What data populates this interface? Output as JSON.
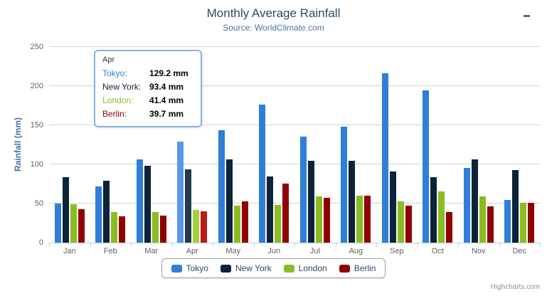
{
  "header": {
    "title": "Monthly Average Rainfall",
    "subtitle": "Source: WorldClimate.com"
  },
  "chart_data": {
    "type": "bar",
    "title": "Monthly Average Rainfall",
    "subtitle": "Source: WorldClimate.com",
    "categories": [
      "Jan",
      "Feb",
      "Mar",
      "Apr",
      "May",
      "Jun",
      "Jul",
      "Aug",
      "Sep",
      "Oct",
      "Nov",
      "Dec"
    ],
    "series": [
      {
        "name": "Tokyo",
        "color": "#2f7ed8",
        "hover_color": "#5997e8",
        "values": [
          49.9,
          71.5,
          106.4,
          129.2,
          144.0,
          176.0,
          135.6,
          148.5,
          216.4,
          194.1,
          95.6,
          54.4
        ]
      },
      {
        "name": "New York",
        "color": "#0d233a",
        "hover_color": "#22394f",
        "values": [
          83.6,
          78.8,
          98.5,
          93.4,
          106.0,
          84.5,
          105.0,
          104.3,
          91.2,
          83.5,
          106.6,
          92.3
        ]
      },
      {
        "name": "London",
        "color": "#8bbc21",
        "hover_color": "#a3cf3d",
        "values": [
          48.9,
          38.8,
          39.3,
          41.4,
          47.0,
          48.3,
          59.0,
          59.6,
          52.4,
          65.2,
          59.3,
          51.2
        ]
      },
      {
        "name": "Berlin",
        "color": "#910000",
        "hover_color": "#c01818",
        "values": [
          42.4,
          33.2,
          34.5,
          39.7,
          52.6,
          75.5,
          57.4,
          60.4,
          47.6,
          39.1,
          46.8,
          51.1
        ]
      }
    ],
    "xlabel": "",
    "ylabel": "Rainfall (mm)",
    "ylim": [
      0,
      250
    ],
    "yticks": [
      0,
      50,
      100,
      150,
      200,
      250
    ],
    "grid": true,
    "legend_position": "bottom",
    "hovered_category": "Apr",
    "hovered_index": 3
  },
  "tooltip": {
    "header": "Apr",
    "rows": [
      {
        "label": "Tokyo:",
        "value": "129.2 mm",
        "color": "#2f7ed8"
      },
      {
        "label": "New York:",
        "value": "93.4 mm",
        "color": "#0d233a"
      },
      {
        "label": "London:",
        "value": "41.4 mm",
        "color": "#8bbc21"
      },
      {
        "label": "Berlin:",
        "value": "39.7 mm",
        "color": "#910000"
      }
    ]
  },
  "legend": {
    "items": [
      {
        "label": "Tokyo",
        "color": "#2f7ed8"
      },
      {
        "label": "New York",
        "color": "#0d233a"
      },
      {
        "label": "London",
        "color": "#8bbc21"
      },
      {
        "label": "Berlin",
        "color": "#910000"
      }
    ]
  },
  "menu": {
    "icon": "hamburger-menu-icon"
  },
  "credits": "Highcharts.com",
  "colors": {
    "title_text": "#274b6d",
    "subtitle_text": "#4d759e",
    "axis_title": "#4572a7",
    "axis_labels": "#606060",
    "gridline": "#d2d2d2",
    "axis_line": "#c0d0e0",
    "tooltip_border": "#87b1e3"
  }
}
